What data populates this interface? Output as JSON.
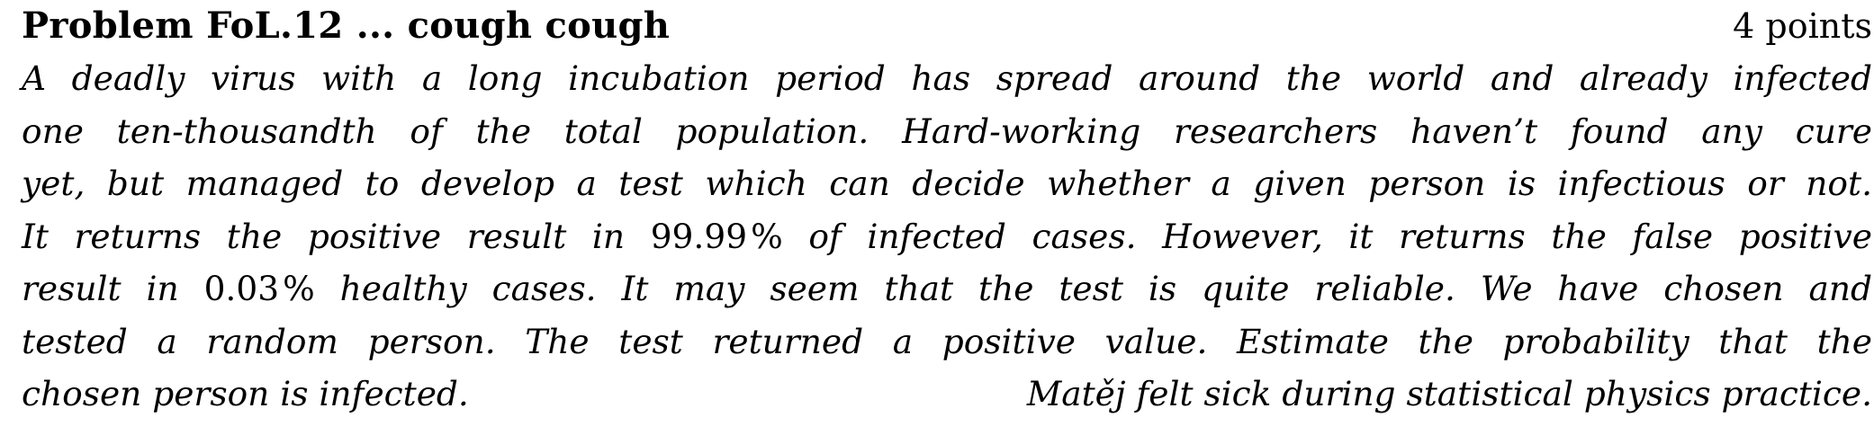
{
  "problem": {
    "title": "Problem FoL.12 ... cough cough",
    "points": "4 points",
    "lines": [
      "A deadly virus with a long incubation period has spread around the world and already infected",
      "one ten-thousandth of the total population. Hard-working researchers haven’t found any cure",
      "yet, but managed to develop a test which can decide whether a given person is infectious or not."
    ],
    "line4": {
      "before": "It returns the positive result in ",
      "value": "99.99",
      "unit": "%",
      "after": " of infected cases. However, it returns the false positive"
    },
    "line5": {
      "before": "result in ",
      "value": "0.03",
      "unit": "%",
      "after": " healthy cases. It may seem that the test is quite reliable. We have chosen and"
    },
    "line6": "tested a random person. The test returned a positive value. Estimate the probability that the",
    "line7": "chosen person is infected.",
    "author_note": "Matěj felt sick during statistical physics practice."
  }
}
